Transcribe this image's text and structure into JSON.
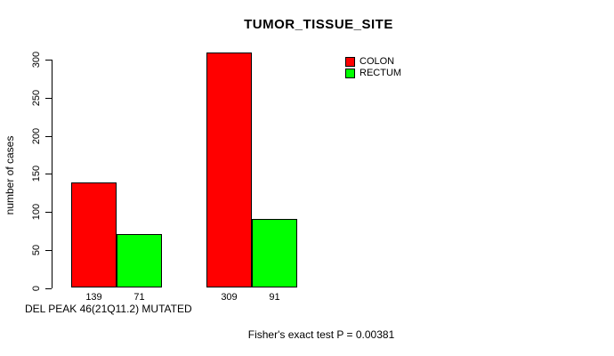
{
  "title": "TUMOR_TISSUE_SITE",
  "y_axis": {
    "label": "number of cases",
    "ticks": [
      0,
      50,
      100,
      150,
      200,
      250,
      300
    ]
  },
  "x_axis": {
    "label": "DEL PEAK 46(21Q11.2) MUTATED"
  },
  "footer": "Fisher's exact test P = 0.00381",
  "legend": {
    "position": "top-right",
    "items": [
      {
        "label": "COLON",
        "color": "#ff0000"
      },
      {
        "label": "RECTUM",
        "color": "#00ff00"
      }
    ]
  },
  "chart_data": {
    "type": "bar",
    "title": "TUMOR_TISSUE_SITE",
    "ylabel": "number of cases",
    "xlabel": "DEL PEAK 46(21Q11.2) MUTATED",
    "annotation": "Fisher's exact test P = 0.00381",
    "grid": false,
    "ylim": [
      0,
      300
    ],
    "yticks": [
      0,
      50,
      100,
      150,
      200,
      250,
      300
    ],
    "groups": 2,
    "series": [
      {
        "name": "COLON",
        "color": "#ff0000",
        "values": [
          139,
          309
        ]
      },
      {
        "name": "RECTUM",
        "color": "#00ff00",
        "values": [
          71,
          91
        ]
      }
    ],
    "bar_value_labels": [
      [
        "139",
        "71"
      ],
      [
        "309",
        "91"
      ]
    ]
  }
}
